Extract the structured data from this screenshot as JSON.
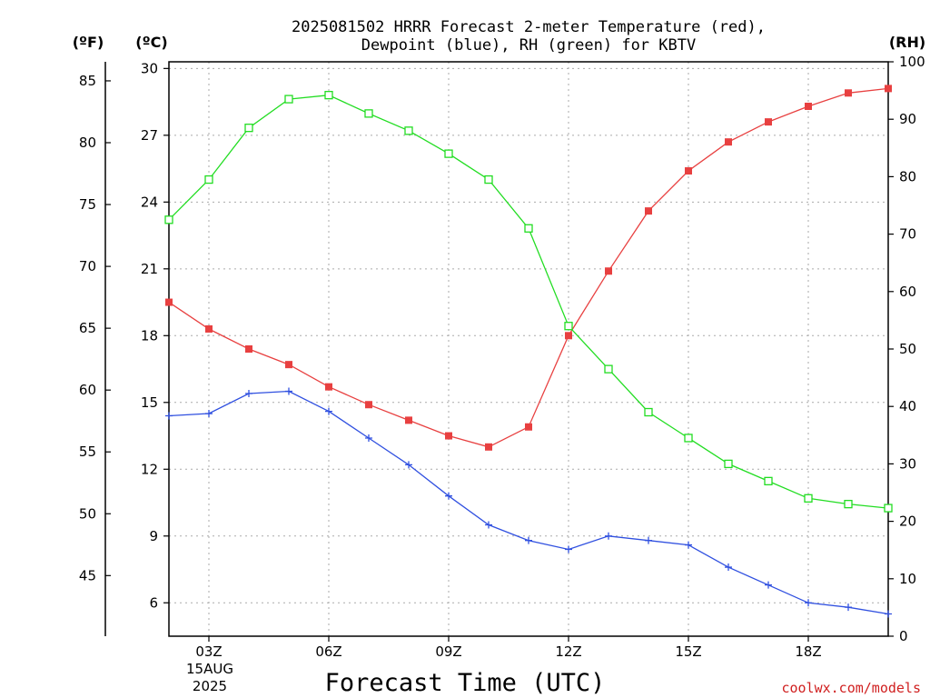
{
  "chart_data": {
    "type": "line",
    "title": [
      "2025081502 HRRR Forecast 2-meter Temperature (red),",
      "Dewpoint (blue), RH (green) for KBTV"
    ],
    "xlabel": "Forecast Time (UTC)",
    "ylabel_f": "(ºF)",
    "ylabel_c": "(ºC)",
    "ylabel_rh": "(RH)",
    "credit": "coolwx.com/models",
    "date_label": [
      "15AUG",
      "2025"
    ],
    "x": [
      "02Z",
      "03Z",
      "04Z",
      "05Z",
      "06Z",
      "07Z",
      "08Z",
      "09Z",
      "10Z",
      "11Z",
      "12Z",
      "13Z",
      "14Z",
      "15Z",
      "16Z",
      "17Z",
      "18Z",
      "19Z",
      "20Z"
    ],
    "xticks": [
      {
        "hour": 3,
        "label": "03Z"
      },
      {
        "hour": 6,
        "label": "06Z"
      },
      {
        "hour": 9,
        "label": "09Z"
      },
      {
        "hour": 12,
        "label": "12Z"
      },
      {
        "hour": 15,
        "label": "15Z"
      },
      {
        "hour": 18,
        "label": "18Z"
      }
    ],
    "xlim": [
      2,
      20
    ],
    "ylim_c": [
      4.5,
      30.3
    ],
    "ylim_rh": [
      0,
      100
    ],
    "yticks_c": [
      "6",
      "9",
      "12",
      "15",
      "18",
      "21",
      "24",
      "27",
      "30"
    ],
    "yticks_f": [
      "45",
      "50",
      "55",
      "60",
      "65",
      "70",
      "75",
      "80",
      "85"
    ],
    "yticks_rh": [
      "0",
      "10",
      "20",
      "30",
      "40",
      "50",
      "60",
      "70",
      "80",
      "90",
      "100"
    ],
    "grid": true,
    "series": [
      {
        "name": "Temperature",
        "axis": "c",
        "color": "#e84040",
        "marker": "filled-square",
        "hours": [
          2,
          3,
          4,
          5,
          6,
          7,
          8,
          9,
          10,
          11,
          12,
          13,
          14,
          15,
          16,
          17,
          18,
          19,
          20
        ],
        "values": [
          19.5,
          18.3,
          17.4,
          16.7,
          15.7,
          14.9,
          14.2,
          13.5,
          13.0,
          13.9,
          18.0,
          20.9,
          23.6,
          25.4,
          26.7,
          27.6,
          28.3,
          28.9,
          29.1
        ]
      },
      {
        "name": "Dewpoint",
        "axis": "c",
        "color": "#3050e0",
        "marker": "plus",
        "hours": [
          2,
          3,
          4,
          5,
          6,
          7,
          8,
          9,
          10,
          11,
          12,
          13,
          14,
          15,
          16,
          17,
          18,
          19,
          20
        ],
        "values": [
          14.4,
          14.5,
          15.4,
          15.5,
          14.6,
          13.4,
          12.2,
          10.8,
          9.5,
          8.8,
          8.4,
          9.0,
          8.8,
          8.6,
          7.6,
          6.8,
          6.0,
          5.8,
          5.5
        ]
      },
      {
        "name": "RH",
        "axis": "rh",
        "color": "#22dd22",
        "marker": "open-square",
        "hours": [
          2,
          3,
          4,
          5,
          6,
          7,
          8,
          9,
          10,
          11,
          12,
          13,
          14,
          15,
          16,
          17,
          18,
          19,
          20
        ],
        "values": [
          72.5,
          79.5,
          88.5,
          93.5,
          94.2,
          91.0,
          88.0,
          84.0,
          79.5,
          71.0,
          54.0,
          46.5,
          39.0,
          34.5,
          30.0,
          27.0,
          24.0,
          23.0,
          22.3
        ]
      }
    ]
  }
}
